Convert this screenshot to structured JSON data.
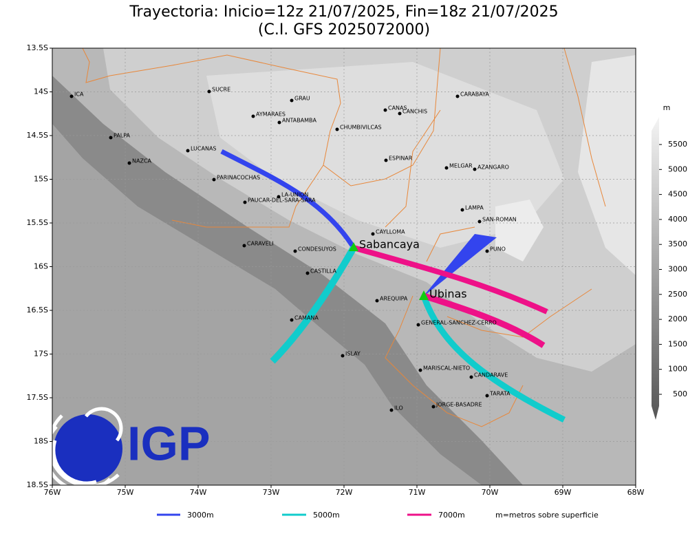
{
  "header": {
    "title": "Trayectoria: Inicio=12z 21/07/2025, Fin=18z 21/07/2025",
    "subtitle": "(C.I. GFS 2025072000)"
  },
  "map": {
    "lon_ticks": [
      {
        "value": -76,
        "label": "76W"
      },
      {
        "value": -75,
        "label": "75W"
      },
      {
        "value": -74,
        "label": "74W"
      },
      {
        "value": -73,
        "label": "73W"
      },
      {
        "value": -72,
        "label": "72W"
      },
      {
        "value": -71,
        "label": "71W"
      },
      {
        "value": -70,
        "label": "70W"
      },
      {
        "value": -69,
        "label": "69W"
      },
      {
        "value": -68,
        "label": "68W"
      }
    ],
    "lat_ticks": [
      {
        "value": -13.5,
        "label": "13.5S"
      },
      {
        "value": -14,
        "label": "14S"
      },
      {
        "value": -14.5,
        "label": "14.5S"
      },
      {
        "value": -15,
        "label": "15S"
      },
      {
        "value": -15.5,
        "label": "15.5S"
      },
      {
        "value": -16,
        "label": "16S"
      },
      {
        "value": -16.5,
        "label": "16.5S"
      },
      {
        "value": -17,
        "label": "17S"
      },
      {
        "value": -17.5,
        "label": "17.5S"
      },
      {
        "value": -18,
        "label": "18S"
      },
      {
        "value": -18.5,
        "label": "18.5S"
      }
    ],
    "cities": [
      "ICA",
      "SUCRE",
      "GRAU",
      "AYMARAES",
      "ANTABAMBA",
      "CANAS",
      "CANCHIS",
      "CARABAYA",
      "CHUMBIVILCAS",
      "PALPA",
      "LUCANAS",
      "ESPINAR",
      "NAZCA",
      "MELGAR",
      "AZANGARO",
      "PARINACOCHAS",
      "LA-UNION",
      "PAUCAR-DEL-SARA-SARA",
      "LAMPA",
      "SAN-ROMAN",
      "CAYLLOMA",
      "CARAVELI",
      "CONDESUYOS",
      "PUNO",
      "CASTILLA",
      "AREQUIPA",
      "CAMANA",
      "GENERAL-SANCHEZ-CERRO",
      "ISLAY",
      "MARISCAL-NIETO",
      "CANDARAVE",
      "TARATA",
      "ILO",
      "JORGE-BASADRE"
    ],
    "volcanoes": [
      "Sabancaya",
      "Ubinas"
    ]
  },
  "colorbar": {
    "unit": "m",
    "ticks": [
      500,
      1000,
      1500,
      2000,
      2500,
      3000,
      3500,
      4000,
      4500,
      5000,
      5500
    ]
  },
  "legend": {
    "items": [
      "3000m",
      "5000m",
      "7000m"
    ],
    "note": "m=metros sobre superficie"
  },
  "logo": {
    "text": "IGP"
  }
}
